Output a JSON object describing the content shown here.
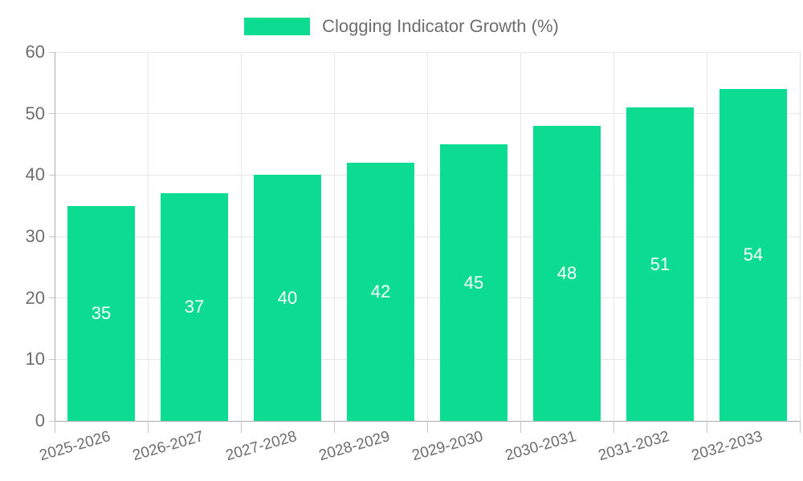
{
  "legend": {
    "label": "Clogging Indicator Growth (%)"
  },
  "colors": {
    "bar": "#0BDC91",
    "grid": "#e7e7e7",
    "axis": "#adadad",
    "tick": "#c6c6c6",
    "right_border": "#e2e2e2",
    "text": "#6e6e6e",
    "bar_label": "#ffffff",
    "background": "#ffffff"
  },
  "chart_data": {
    "type": "bar",
    "title": "Clogging Indicator Growth (%)",
    "categories": [
      "2025-2026",
      "2026-2027",
      "2027-2028",
      "2028-2029",
      "2029-2030",
      "2030-2031",
      "2031-2032",
      "2032-2033"
    ],
    "values": [
      35,
      37,
      40,
      42,
      45,
      48,
      51,
      54
    ],
    "series": [
      {
        "name": "Clogging Indicator Growth (%)",
        "values": [
          35,
          37,
          40,
          42,
          45,
          48,
          51,
          54
        ]
      }
    ],
    "xlabel": "",
    "ylabel": "",
    "ylim": [
      0,
      60
    ],
    "yticks": [
      0,
      10,
      20,
      30,
      40,
      50,
      60
    ],
    "grid": true,
    "legend_position": "top-center",
    "bar_color": "#0BDC91",
    "bar_labels_inside": true,
    "x_label_rotation_deg": -16
  }
}
